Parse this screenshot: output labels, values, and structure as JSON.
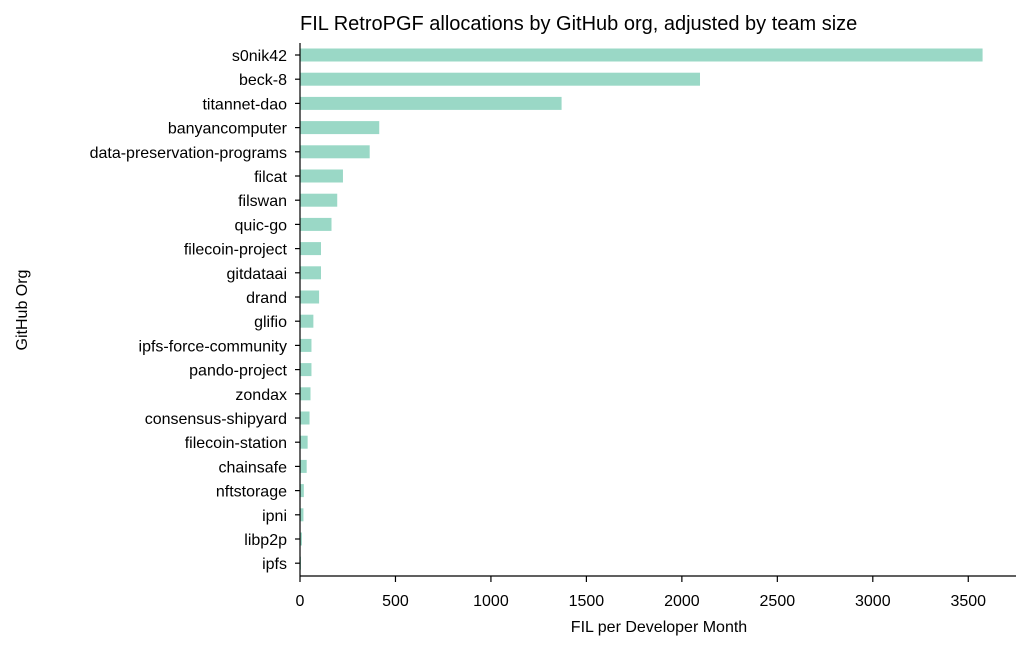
{
  "chart_data": {
    "type": "bar",
    "orientation": "horizontal",
    "title": "FIL RetroPGF allocations by GitHub org, adjusted by team size",
    "xlabel": "FIL per Developer Month",
    "ylabel": "GitHub Org",
    "xlim": [
      0,
      3750
    ],
    "xticks": [
      0,
      500,
      1000,
      1500,
      2000,
      2500,
      3000,
      3500
    ],
    "bar_color": "#9ad8c6",
    "grid": false,
    "legend": "none",
    "categories": [
      "s0nik42",
      "beck-8",
      "titannet-dao",
      "banyancomputer",
      "data-preservation-programs",
      "filcat",
      "filswan",
      "quic-go",
      "filecoin-project",
      "gitdataai",
      "drand",
      "glifio",
      "ipfs-force-community",
      "pando-project",
      "zondax",
      "consensus-shipyard",
      "filecoin-station",
      "chainsafe",
      "nftstorage",
      "ipni",
      "libp2p",
      "ipfs"
    ],
    "values": [
      3575,
      2095,
      1370,
      415,
      365,
      225,
      195,
      165,
      110,
      110,
      100,
      70,
      60,
      60,
      55,
      50,
      40,
      35,
      20,
      18,
      10,
      5
    ]
  }
}
